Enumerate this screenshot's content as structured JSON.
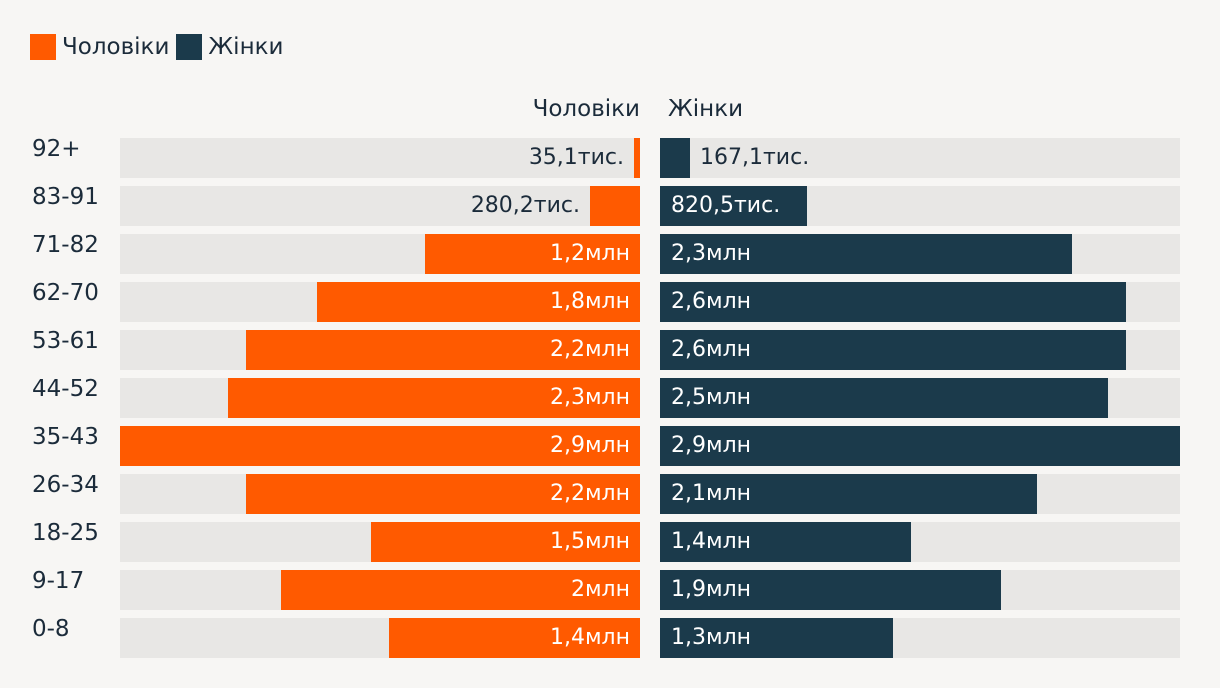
{
  "legend": [
    {
      "label": "Чоловіки",
      "color": "#ff5a00"
    },
    {
      "label": "Жінки",
      "color": "#1b3a4b"
    }
  ],
  "column_headers": {
    "men": "Чоловіки",
    "women": "Жінки"
  },
  "chart_data": {
    "type": "bar",
    "orientation": "horizontal",
    "subtype": "population-pyramid",
    "categories": [
      "92+",
      "83-91",
      "71-82",
      "62-70",
      "53-61",
      "44-52",
      "35-43",
      "26-34",
      "18-25",
      "9-17",
      "0-8"
    ],
    "series": [
      {
        "name": "Чоловіки",
        "color": "#ff5a00",
        "values": [
          35100,
          280200,
          1200000,
          1800000,
          2200000,
          2300000,
          2900000,
          2200000,
          1500000,
          2000000,
          1400000
        ],
        "labels": [
          "35,1тис.",
          "280,2тис.",
          "1,2млн",
          "1,8млн",
          "2,2млн",
          "2,3млн",
          "2,9млн",
          "2,2млн",
          "1,5млн",
          "2млн",
          "1,4млн"
        ]
      },
      {
        "name": "Жінки",
        "color": "#1b3a4b",
        "values": [
          167100,
          820500,
          2300000,
          2600000,
          2600000,
          2500000,
          2900000,
          2100000,
          1400000,
          1900000,
          1300000
        ],
        "labels": [
          "167,1тис.",
          "820,5тис.",
          "2,3млн",
          "2,6млн",
          "2,6млн",
          "2,5млн",
          "2,9млн",
          "2,1млн",
          "1,4млн",
          "1,9млн",
          "1,3млн"
        ]
      }
    ],
    "xlim": [
      0,
      2900000
    ],
    "track_color": "#e8e7e5"
  }
}
